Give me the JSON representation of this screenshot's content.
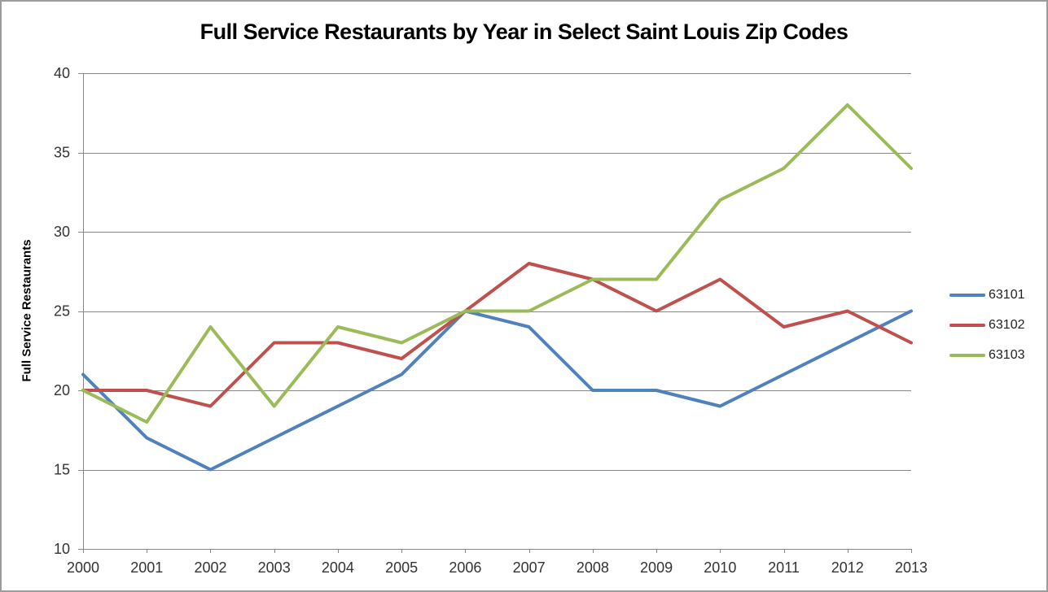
{
  "window": {
    "background": "#ffffff",
    "border_color": "#9c9c9c"
  },
  "chart_data": {
    "type": "line",
    "title": "Full Service Restaurants by Year in Select Saint Louis Zip Codes",
    "xlabel": "",
    "ylabel": "Full Service Restaurants",
    "categories": [
      "2000",
      "2001",
      "2002",
      "2003",
      "2004",
      "2005",
      "2006",
      "2007",
      "2008",
      "2009",
      "2010",
      "2011",
      "2012",
      "2013"
    ],
    "series": [
      {
        "name": "63101",
        "color": "#4F81BD",
        "values": [
          21,
          17,
          15,
          17,
          19,
          21,
          25,
          24,
          20,
          20,
          19,
          21,
          23,
          25
        ]
      },
      {
        "name": "63102",
        "color": "#C0504D",
        "values": [
          20,
          20,
          19,
          23,
          23,
          22,
          25,
          28,
          27,
          25,
          27,
          24,
          25,
          23
        ]
      },
      {
        "name": "63103",
        "color": "#9BBB59",
        "values": [
          20,
          18,
          24,
          19,
          24,
          23,
          25,
          25,
          27,
          27,
          32,
          34,
          38,
          34
        ]
      }
    ],
    "ylim": [
      10,
      40
    ],
    "yticks": [
      10,
      15,
      20,
      25,
      30,
      35,
      40
    ],
    "grid": "horizontal",
    "legend_position": "right",
    "gridline_color": "#878787",
    "axis_color": "#878787",
    "tick_label_color": "#333333",
    "line_width": 4
  }
}
